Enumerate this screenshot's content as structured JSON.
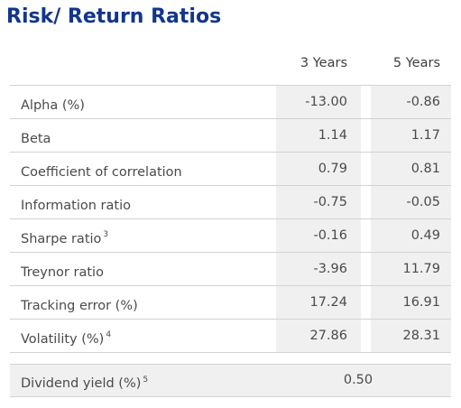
{
  "title": "Risk/ Return Ratios",
  "columns": [
    "3 Years",
    "5 Years"
  ],
  "rows": [
    {
      "label": "Alpha (%)",
      "sup": "",
      "y3": "-13.00",
      "y5": "-0.86"
    },
    {
      "label": "Beta",
      "sup": "",
      "y3": "1.14",
      "y5": "1.17"
    },
    {
      "label": "Coefficient of correlation",
      "sup": "",
      "y3": "0.79",
      "y5": "0.81"
    },
    {
      "label": "Information ratio",
      "sup": "",
      "y3": "-0.75",
      "y5": "-0.05"
    },
    {
      "label": "Sharpe ratio",
      "sup": "3",
      "y3": "-0.16",
      "y5": "0.49"
    },
    {
      "label": "Treynor ratio",
      "sup": "",
      "y3": "-3.96",
      "y5": "11.79"
    },
    {
      "label": "Tracking error (%)",
      "sup": "",
      "y3": "17.24",
      "y5": "16.91"
    },
    {
      "label": "Volatility (%)",
      "sup": "4",
      "y3": "27.86",
      "y5": "28.31"
    }
  ],
  "dividend": {
    "label": "Dividend yield (%)",
    "sup": "5",
    "value": "0.50"
  },
  "colors": {
    "title": "#12358e",
    "shade": "#f0f0f0",
    "rule": "#d2d2d2"
  }
}
